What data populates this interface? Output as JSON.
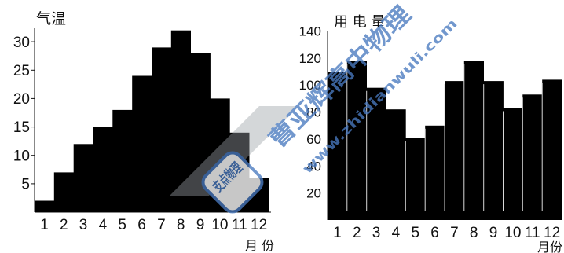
{
  "chart_data": [
    {
      "type": "bar",
      "ylabel": "气温",
      "xlabel": "月 份",
      "categories": [
        "1",
        "2",
        "3",
        "4",
        "5",
        "6",
        "7",
        "8",
        "9",
        "10",
        "11",
        "12"
      ],
      "values": [
        2,
        7,
        12,
        15,
        18,
        24,
        29,
        32,
        28,
        20,
        14,
        6
      ],
      "yticks": [
        5,
        10,
        15,
        20,
        25,
        30
      ],
      "ylim": [
        0,
        35
      ],
      "grid": false
    },
    {
      "type": "bar",
      "ylabel": "用 电 量",
      "xlabel": "月份",
      "categories": [
        "1",
        "2",
        "3",
        "4",
        "5",
        "6",
        "7",
        "8",
        "9",
        "10",
        "11",
        "12"
      ],
      "values": [
        110,
        118,
        98,
        82,
        61,
        70,
        103,
        118,
        103,
        83,
        93,
        104
      ],
      "yticks": [
        20,
        40,
        60,
        80,
        100,
        120,
        140
      ],
      "ylim": [
        0,
        145
      ],
      "grid": false
    }
  ],
  "watermark": {
    "seal_text": "支点物理",
    "site_text": "曹亚辉高中物理",
    "url_text": "www.zhidianwuli.com",
    "color": "#4a7ac0"
  }
}
